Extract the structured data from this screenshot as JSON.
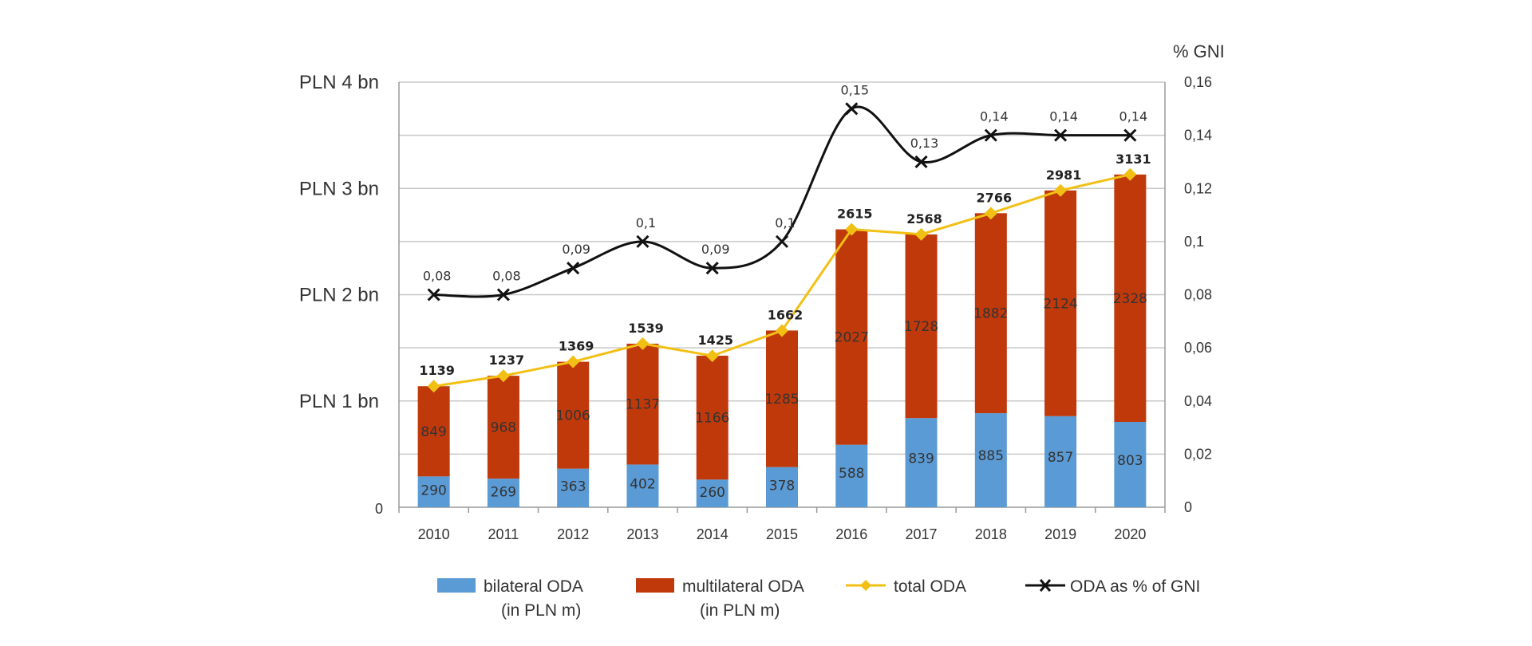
{
  "chart_data": {
    "type": "bar",
    "categories": [
      "2010",
      "2011",
      "2012",
      "2013",
      "2014",
      "2015",
      "2016",
      "2017",
      "2018",
      "2019",
      "2020"
    ],
    "series": [
      {
        "name": "bilateral ODA (in PLN m)",
        "type": "bar",
        "stack": true,
        "color": "#5b9bd5",
        "values": [
          290,
          269,
          363,
          402,
          260,
          378,
          588,
          839,
          885,
          857,
          803
        ]
      },
      {
        "name": "multilateral ODA (in PLN m)",
        "type": "bar",
        "stack": true,
        "color": "#c0390b",
        "values": [
          849,
          968,
          1006,
          1137,
          1166,
          1285,
          2027,
          1728,
          1882,
          2124,
          2328
        ]
      },
      {
        "name": "total ODA",
        "type": "line",
        "color": "#f2c014",
        "values": [
          1139,
          1237,
          1369,
          1539,
          1425,
          1662,
          2615,
          2568,
          2766,
          2981,
          3131
        ]
      },
      {
        "name": "ODA as % of GNI",
        "type": "line",
        "axis": "right",
        "smooth": true,
        "color": "#111111",
        "values": [
          0.08,
          0.08,
          0.09,
          0.1,
          0.09,
          0.1,
          0.15,
          0.13,
          0.14,
          0.14,
          0.14
        ]
      }
    ],
    "gni_labels": [
      "0,08",
      "0,08",
      "0,09",
      "0,1",
      "0,09",
      "0,1",
      "0,15",
      "0,13",
      "0,14",
      "0,14",
      "0,14"
    ],
    "left_axis": {
      "ylim": [
        0,
        4000
      ],
      "ticks": [
        "0",
        "PLN 1 bn",
        "PLN 2 bn",
        "PLN 3 bn",
        "PLN 4 bn"
      ]
    },
    "right_axis": {
      "title": "% GNI",
      "ylim": [
        0,
        0.16
      ],
      "ticks": [
        "0",
        "0,02",
        "0,04",
        "0,06",
        "0,08",
        "0,1",
        "0,12",
        "0,14",
        "0,16"
      ]
    },
    "grid": true,
    "legend": {
      "placement": "bottom",
      "items": [
        {
          "line1": "bilateral ODA",
          "line2": "(in PLN m)",
          "marker": "box",
          "color": "#5b9bd5"
        },
        {
          "line1": "multilateral ODA",
          "line2": "(in PLN m)",
          "marker": "box",
          "color": "#c0390b"
        },
        {
          "line1": "total ODA",
          "line2": "",
          "marker": "line-diamond",
          "color": "#f2c014"
        },
        {
          "line1": "ODA as % of GNI",
          "line2": "",
          "marker": "line-x",
          "color": "#111111"
        }
      ]
    }
  }
}
